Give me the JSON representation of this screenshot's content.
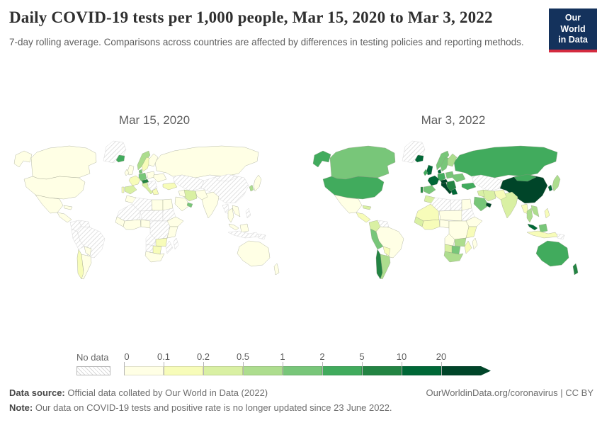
{
  "header": {
    "title": "Daily COVID-19 tests per 1,000 people, Mar 15, 2020 to Mar 3, 2022",
    "subtitle": "7-day rolling average. Comparisons across countries are affected by differences in testing policies and reporting methods."
  },
  "logo": {
    "line1": "Our World",
    "line2": "in Data",
    "bg_color": "#14325c",
    "underline_color": "#d42b3f"
  },
  "footer": {
    "source_label": "Data source:",
    "source_text": " Official data collated by Our World in Data (2022)",
    "note_label": "Note:",
    "note_text": " Our data on COVID-19 tests and positive rate is no longer updated since 23 June 2022.",
    "credit": "OurWorldinData.org/coronavirus | CC BY"
  },
  "chart_data": {
    "type": "heatmap",
    "subtype": "choropleth-world-map-pair",
    "metric": "Daily COVID-19 tests per 1,000 people (7-day rolling average)",
    "legend": {
      "no_data_label": "No data",
      "tick_labels": [
        "0",
        "0.1",
        "0.2",
        "0.5",
        "1",
        "2",
        "5",
        "10",
        "20"
      ],
      "bin_ranges": [
        "0-0.1",
        "0.1-0.2",
        "0.2-0.5",
        "0.5-1",
        "1-2",
        "2-5",
        "5-10",
        "10-20",
        "20+"
      ],
      "colors": [
        "#ffffe5",
        "#f7fcb9",
        "#d9f0a3",
        "#addd8e",
        "#78c679",
        "#41ab5d",
        "#238443",
        "#006837",
        "#004529"
      ],
      "no_data_pattern": "diagonal-hatch"
    },
    "maps": [
      {
        "label": "Mar 15, 2020",
        "values": {
          "greenland": "nd",
          "alaska": 0,
          "canada": 0,
          "usa": 0,
          "mexico": 0,
          "central_america": 0,
          "cuba": 0,
          "colombia": "nd",
          "venezuela": "nd",
          "brazil": "nd",
          "peru": "nd",
          "bolivia": 0,
          "argentina": 0,
          "chile": 1,
          "iceland": 5,
          "norway": 3,
          "sweden": 1,
          "finland": 0,
          "uk": 0,
          "ireland": 0,
          "denmark": 4,
          "germany": 4,
          "france": 1,
          "spain": 2,
          "portugal": 1,
          "italy": 2,
          "poland": 0,
          "ukraine": 0,
          "balkans": "nd",
          "greece": 1,
          "austria": 6,
          "turkey": 1,
          "russia": 0,
          "central_asia": "nd",
          "china": "nd",
          "mongolia": "nd",
          "japan": 0,
          "south_korea": 3,
          "india": 0,
          "pakistan": 0,
          "iran": 2,
          "iraq": 0,
          "saudi": 0,
          "uae": 4,
          "morocco": 0,
          "algeria": "nd",
          "libya": 0,
          "egypt": 0,
          "mauritania_mali": "nd",
          "niger_chad": "nd",
          "senegal_guinea": 0,
          "west_africa_coast": 0,
          "nigeria": 0,
          "sudan": "nd",
          "ethiopia": 0,
          "drc": "nd",
          "east_africa": 0,
          "angola": "nd",
          "zambia_zimbabwe": 1,
          "mozambique": "nd",
          "namibia": "nd",
          "botswana": 1,
          "south_africa": 0,
          "madagascar": "nd",
          "myanmar": "nd",
          "thailand": 0,
          "vietnam": 0,
          "malaysia": 0,
          "borneo": 0,
          "indonesia": "nd",
          "philippines": "nd",
          "png": "nd",
          "australia": 0,
          "new_zealand": 0
        }
      },
      {
        "label": "Mar 3, 2022",
        "values": {
          "greenland": "nd",
          "alaska": 5,
          "canada": 4,
          "usa": 5,
          "mexico": 0,
          "central_america": 1,
          "cuba": 2,
          "colombia": 2,
          "venezuela": "nd",
          "brazil": 0,
          "peru": 4,
          "bolivia": 1,
          "argentina": 3,
          "chile": 6,
          "iceland": 7,
          "norway": 4,
          "sweden": 4,
          "finland": 3,
          "uk": 7,
          "ireland": 5,
          "denmark": 7,
          "germany": 5,
          "france": 7,
          "spain": 4,
          "portugal": 6,
          "italy": 8,
          "poland": 4,
          "ukraine": 4,
          "balkans": 6,
          "greece": 7,
          "austria": 8,
          "turkey": 5,
          "russia": 5,
          "central_asia": "nd",
          "china": 8,
          "mongolia": 5,
          "japan": 3,
          "south_korea": 7,
          "india": 2,
          "pakistan": 1,
          "iran": 2,
          "iraq": 2,
          "saudi": 4,
          "uae": 8,
          "morocco": 2,
          "algeria": "nd",
          "libya": "nd",
          "egypt": 0,
          "mauritania_mali": 1,
          "niger_chad": 0,
          "senegal_guinea": 2,
          "west_africa_coast": 1,
          "nigeria": 0,
          "sudan": "nd",
          "ethiopia": 0,
          "drc": 0,
          "east_africa": 1,
          "angola": 0,
          "zambia_zimbabwe": 3,
          "mozambique": 1,
          "namibia": 2,
          "botswana": 4,
          "south_africa": 3,
          "madagascar": 0,
          "myanmar": 1,
          "thailand": 3,
          "vietnam": 3,
          "malaysia": 7,
          "borneo": 4,
          "indonesia": 1,
          "philippines": 1,
          "png": "nd",
          "australia": 5,
          "new_zealand": 6
        }
      }
    ]
  }
}
